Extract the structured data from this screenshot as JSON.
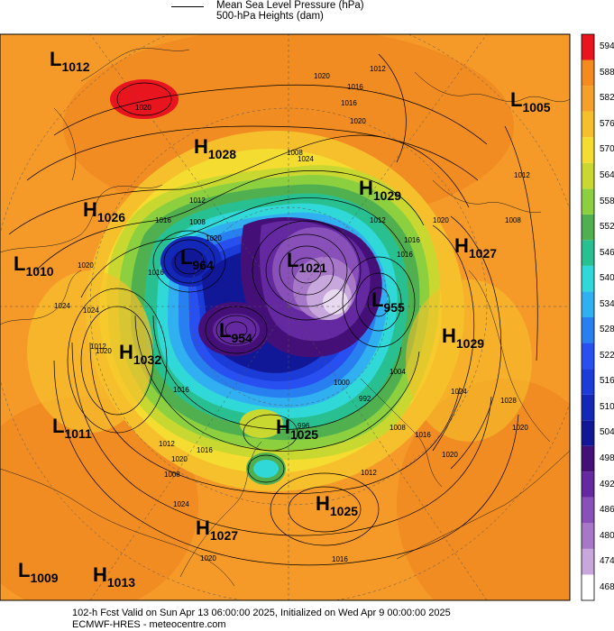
{
  "legend": {
    "mslp_label": "Mean Sea Level Pressure (hPa)",
    "heights_label": "500-hPa Heights (dam)"
  },
  "colorbar": {
    "levels": [
      "594",
      "588",
      "582",
      "576",
      "570",
      "564",
      "558",
      "552",
      "546",
      "540",
      "534",
      "528",
      "522",
      "516",
      "510",
      "504",
      "498",
      "492",
      "486",
      "480",
      "474",
      "468"
    ],
    "colors": [
      "#e8141e",
      "#f58a1f",
      "#f5a02a",
      "#f6c02c",
      "#f4dc30",
      "#c8d830",
      "#8cd040",
      "#50b050",
      "#28c090",
      "#30d8d8",
      "#30b0f0",
      "#2880f0",
      "#2850f0",
      "#1c3cd8",
      "#1428b8",
      "#101898",
      "#441078",
      "#6428a0",
      "#8850b8",
      "#a878c8",
      "#c8a8dc",
      "#ffffff"
    ]
  },
  "pressure_centers": [
    {
      "type": "L",
      "value": "1012"
    },
    {
      "type": "H",
      "value": "1028"
    },
    {
      "type": "L",
      "value": "1005"
    },
    {
      "type": "H",
      "value": "1026"
    },
    {
      "type": "H",
      "value": "1029"
    },
    {
      "type": "L",
      "value": "1010"
    },
    {
      "type": "L",
      "value": "964"
    },
    {
      "type": "L",
      "value": "1021"
    },
    {
      "type": "H",
      "value": "1027"
    },
    {
      "type": "H",
      "value": "1032"
    },
    {
      "type": "L",
      "value": "954"
    },
    {
      "type": "L",
      "value": "955"
    },
    {
      "type": "H",
      "value": "1029"
    },
    {
      "type": "L",
      "value": "1011"
    },
    {
      "type": "H",
      "value": "1025"
    },
    {
      "type": "H",
      "value": "1025"
    },
    {
      "type": "H",
      "value": "1027"
    },
    {
      "type": "L",
      "value": "1009"
    },
    {
      "type": "H",
      "value": "1013"
    }
  ],
  "isobar_labels": [
    "1020",
    "1016",
    "1012",
    "1020",
    "1008",
    "1016",
    "1012",
    "1024",
    "1020",
    "1016",
    "1012",
    "1008",
    "1016",
    "1020",
    "1024",
    "1012",
    "1016",
    "1020",
    "1012",
    "1008",
    "1024",
    "1028",
    "1020",
    "1024",
    "1020",
    "1016",
    "1012",
    "1000",
    "992",
    "996",
    "1004",
    "1008",
    "1012",
    "1016",
    "1020",
    "1024",
    "1016",
    "1008",
    "1020",
    "1016",
    "1020",
    "1016",
    "1020"
  ],
  "footer": {
    "line1": "102-h Fcst Valid on Sun Apr 13 06:00:00 2025, Initialized on Wed Apr  9 00:00:00 2025",
    "line2": "ECMWF-HRES  - meteocentre.com"
  }
}
